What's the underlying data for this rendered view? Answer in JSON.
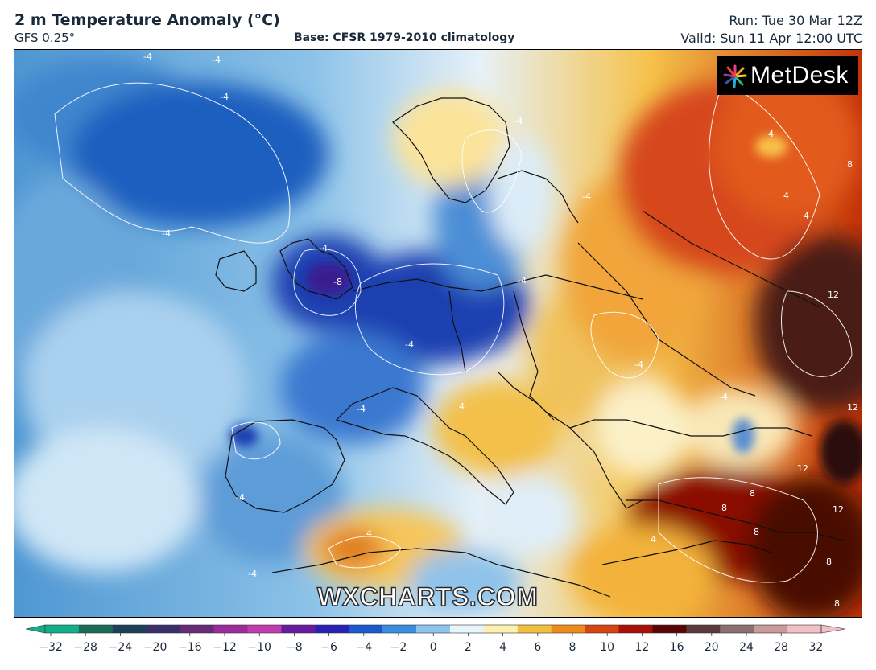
{
  "header": {
    "title": "2 m Temperature Anomaly (°C)",
    "model": "GFS 0.25°",
    "base": "Base: CFSR 1979-2010 climatology",
    "run": "Run: Tue 30 Mar 12Z",
    "valid": "Valid: Sun 11 Apr 12:00 UTC"
  },
  "branding": {
    "logo_text": "MetDesk",
    "watermark": "WXCHARTS.COM"
  },
  "colorbar": {
    "ticks": [
      "−32",
      "−28",
      "−24",
      "−20",
      "−16",
      "−12",
      "−10",
      "−8",
      "−6",
      "−4",
      "−2",
      "0",
      "2",
      "4",
      "6",
      "8",
      "10",
      "12",
      "16",
      "20",
      "24",
      "28",
      "32"
    ],
    "colors": [
      "#12b08a",
      "#1a6b5a",
      "#1c3f5a",
      "#3a2f6a",
      "#6a2a7a",
      "#9c2a9a",
      "#c23ab0",
      "#6a1aa0",
      "#2a20b8",
      "#1a5ad0",
      "#3a8ee0",
      "#8cc4ee",
      "#e8f4fb",
      "#fdf0b0",
      "#f2c040",
      "#ef8a1a",
      "#d84410",
      "#a81008",
      "#5a0404",
      "#5a3a3a",
      "#8a7070",
      "#c89a9a",
      "#f0c0c4"
    ]
  },
  "map": {
    "contour_labels": [
      "-4",
      "-4",
      "-4",
      "-4",
      "-4",
      "-4",
      "-4",
      "-4",
      "-4",
      "-4",
      "-4",
      "-4",
      "-4",
      "-4",
      "-8",
      "4",
      "4",
      "4",
      "4",
      "4",
      "4",
      "8",
      "8",
      "8",
      "8",
      "8",
      "8",
      "12",
      "12",
      "12",
      "12"
    ]
  }
}
